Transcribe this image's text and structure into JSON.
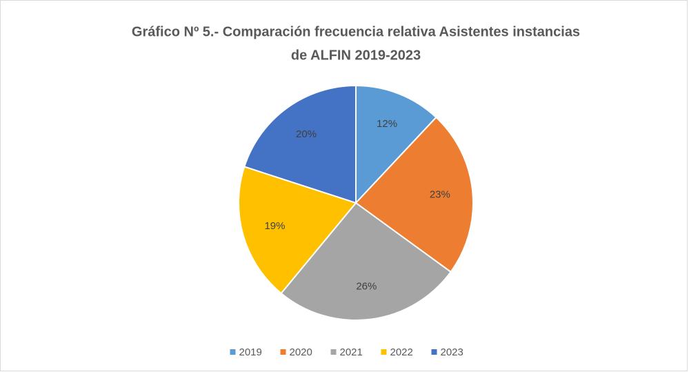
{
  "chart_data": {
    "type": "pie",
    "title": [
      "Gráfico Nº 5.- Comparación frecuencia relativa Asistentes instancias",
      "de ALFIN 2019-2023"
    ],
    "categories": [
      "2019",
      "2020",
      "2021",
      "2022",
      "2023"
    ],
    "values": [
      12,
      23,
      26,
      19,
      20
    ],
    "value_labels": [
      "12%",
      "23%",
      "26%",
      "19%",
      "20%"
    ],
    "colors": [
      "#5b9bd5",
      "#ed7d31",
      "#a5a5a5",
      "#ffc000",
      "#4472c4"
    ],
    "legend": "bottom"
  }
}
